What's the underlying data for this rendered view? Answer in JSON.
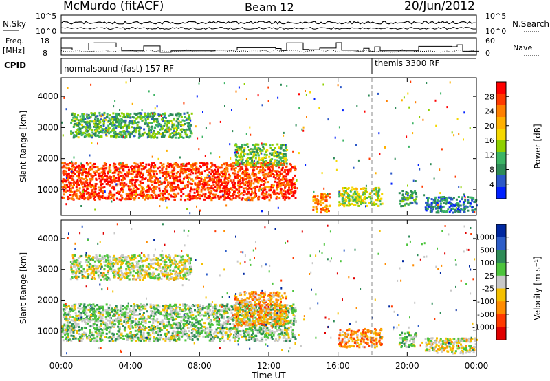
{
  "header": {
    "station": "McMurdo (fitACF)",
    "beam": "Beam 12",
    "date": "20/Jun/2012"
  },
  "noise_panel": {
    "left_label": "N.Sky",
    "right_label": "N.Search",
    "left_ticks": [
      "10^5",
      "10^0"
    ],
    "right_ticks": [
      "10^5",
      "10^0"
    ]
  },
  "freq_panel": {
    "left_label_line1": "Freq.",
    "left_label_line2": "[MHz]",
    "right_label": "Nave",
    "left_ticks": [
      "18",
      "8"
    ],
    "right_ticks": [
      "60",
      "0"
    ]
  },
  "cpid_panel": {
    "label": "CPID",
    "modes": [
      "normalsound (fast) 157 RF",
      "themis 3300 RF"
    ]
  },
  "power_panel": {
    "ylabel": "Slant Range [km]",
    "yticks": [
      "4000",
      "3000",
      "2000",
      "1000"
    ],
    "colorbar_label": "Power [dB]",
    "colorbar_ticks": [
      "28",
      "24",
      "20",
      "16",
      "12",
      "8",
      "4"
    ],
    "colorbar_colors": [
      "#ff0000",
      "#ff3a00",
      "#ff7f00",
      "#ffb000",
      "#f5d800",
      "#8fd000",
      "#3cb464",
      "#2e8b57",
      "#2c58c8",
      "#0020ff"
    ]
  },
  "velocity_panel": {
    "ylabel": "Slant Range [km]",
    "yticks": [
      "4000",
      "3000",
      "2000",
      "1000"
    ],
    "colorbar_label": "Velocity [m s⁻¹]",
    "colorbar_ticks": [
      "1000",
      "500",
      "100",
      "25",
      "-25",
      "-100",
      "-500",
      "-1000"
    ],
    "colorbar_colors": [
      "#0028a0",
      "#2d5ec8",
      "#2e8b57",
      "#4cc43c",
      "#c8c8c8",
      "#f5c000",
      "#ff8c00",
      "#ff3a00",
      "#e00000"
    ]
  },
  "time_axis": {
    "xlabel": "Time UT",
    "ticks": [
      "00:00",
      "04:00",
      "08:00",
      "12:00",
      "16:00",
      "20:00",
      "00:00"
    ]
  },
  "chart_data": {
    "type": "heatmap",
    "title": "McMurdo (fitACF)  Beam 12  20/Jun/2012",
    "xlabel": "Time UT",
    "ylabel": "Slant Range [km]",
    "xlim": [
      "00:00",
      "24:00"
    ],
    "ylim": [
      180,
      4600
    ],
    "grid": false,
    "mode_change_time_ut": "18:00",
    "power_panel": {
      "quantity": "Power [dB]",
      "range": [
        0,
        30
      ],
      "regions": [
        {
          "start_hour": 0.0,
          "end_hour": 13.5,
          "range_min_km": 700,
          "range_max_km": 1900,
          "value": 26
        },
        {
          "start_hour": 0.5,
          "end_hour": 7.5,
          "range_min_km": 2700,
          "range_max_km": 3500,
          "value": 10
        },
        {
          "start_hour": 10.0,
          "end_hour": 13.0,
          "range_min_km": 1800,
          "range_max_km": 2500,
          "value": 12
        },
        {
          "start_hour": 14.5,
          "end_hour": 15.5,
          "range_min_km": 300,
          "range_max_km": 900,
          "value": 22
        },
        {
          "start_hour": 16.0,
          "end_hour": 18.5,
          "range_min_km": 500,
          "range_max_km": 1100,
          "value": 14
        },
        {
          "start_hour": 19.5,
          "end_hour": 20.5,
          "range_min_km": 500,
          "range_max_km": 1000,
          "value": 10
        },
        {
          "start_hour": 21.0,
          "end_hour": 24.0,
          "range_min_km": 300,
          "range_max_km": 800,
          "value": 6
        }
      ]
    },
    "velocity_panel": {
      "quantity": "Velocity [m s-1]",
      "range": [
        -1000,
        1000
      ],
      "regions": [
        {
          "start_hour": 0.0,
          "end_hour": 13.5,
          "range_min_km": 700,
          "range_max_km": 1900,
          "value": 150
        },
        {
          "start_hour": 0.5,
          "end_hour": 7.5,
          "range_min_km": 2700,
          "range_max_km": 3500,
          "value": 0
        },
        {
          "start_hour": 10.0,
          "end_hour": 13.0,
          "range_min_km": 1200,
          "range_max_km": 2300,
          "value": -300
        },
        {
          "start_hour": 16.0,
          "end_hour": 18.5,
          "range_min_km": 500,
          "range_max_km": 1100,
          "value": -400
        },
        {
          "start_hour": 19.5,
          "end_hour": 20.5,
          "range_min_km": 500,
          "range_max_km": 1000,
          "value": 200
        },
        {
          "start_hour": 21.0,
          "end_hour": 24.0,
          "range_min_km": 300,
          "range_max_km": 800,
          "value": -80
        }
      ]
    }
  }
}
